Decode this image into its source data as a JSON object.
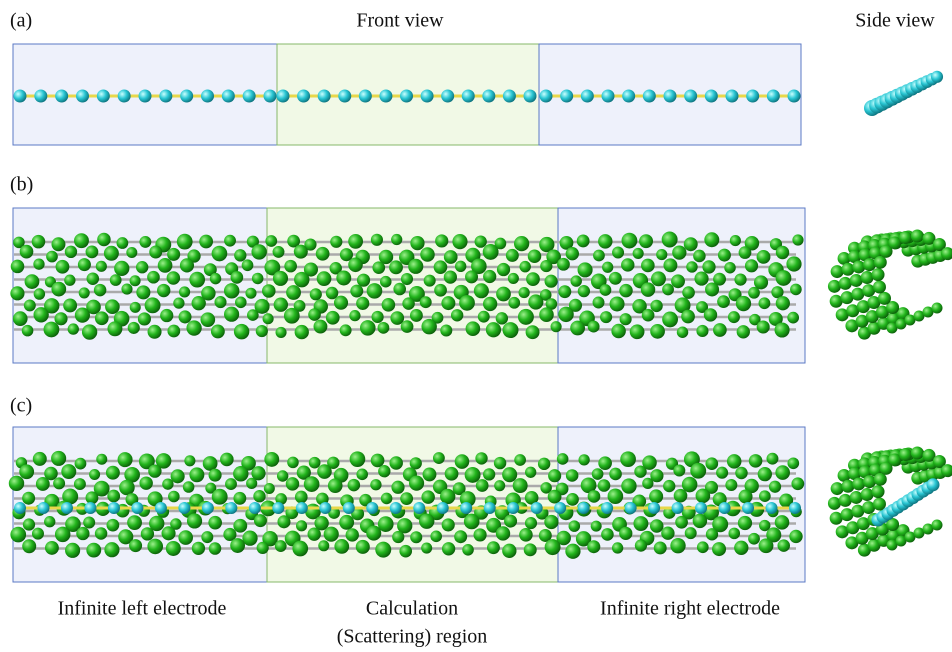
{
  "panels": [
    {
      "label": "(a)",
      "front_title": "Front view",
      "side_title": "Side view"
    },
    {
      "label": "(b)"
    },
    {
      "label": "(c)"
    }
  ],
  "regions": {
    "left": "Infinite left electrode",
    "middle": [
      "Calculation",
      "(Scattering) region"
    ],
    "right": "Infinite right electrode"
  }
}
